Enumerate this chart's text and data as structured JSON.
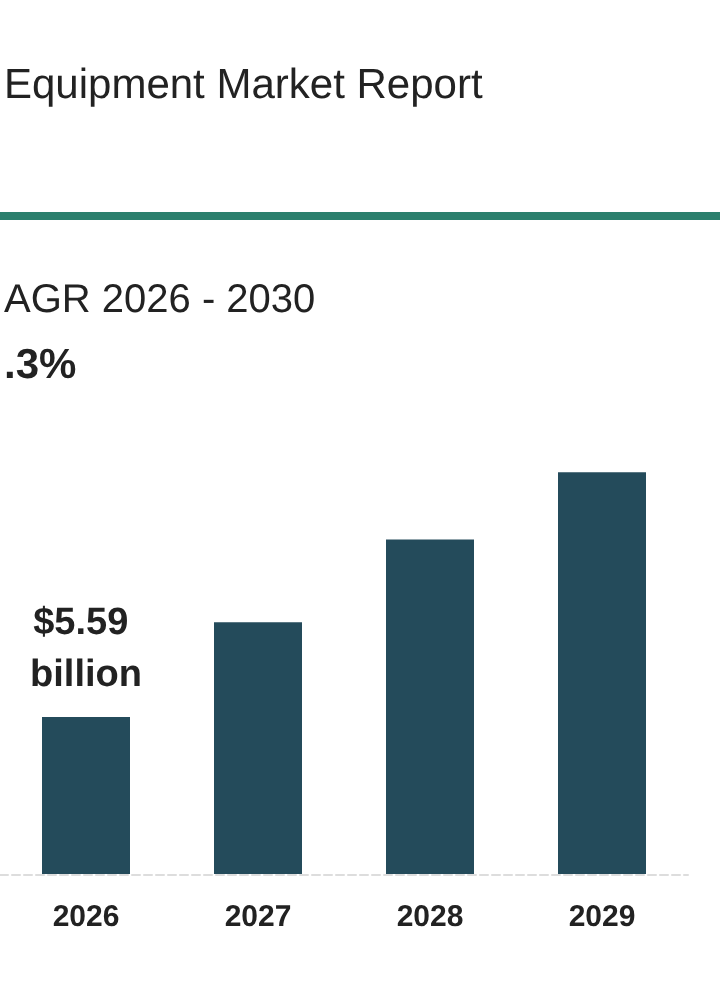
{
  "chart_data": {
    "type": "bar",
    "title": "Equipment Market Report",
    "annotations": [
      "AGR 2026 - 2030",
      ".3%"
    ],
    "categories": [
      "2026",
      "2027",
      "2028",
      "2029"
    ],
    "values": [
      5.59,
      8.97,
      11.92,
      14.31
    ],
    "value_labels": [
      "$5.59 billion",
      null,
      null,
      null
    ],
    "color": "#244b5b"
  }
}
